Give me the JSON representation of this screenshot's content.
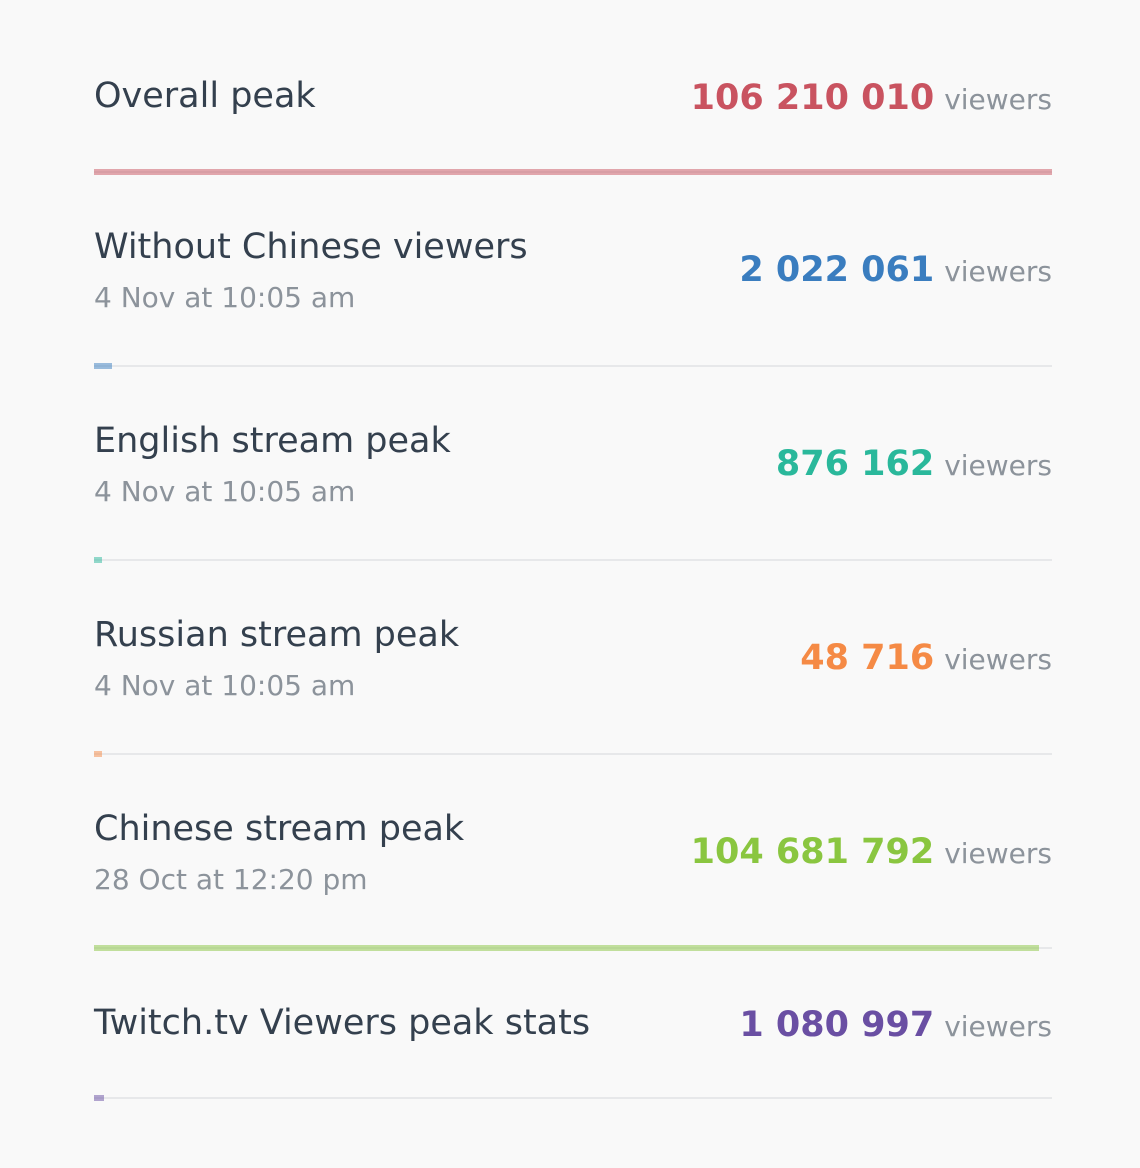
{
  "rows": [
    {
      "title": "Overall peak",
      "date": "",
      "value": "106 210 010",
      "unit": "viewers",
      "color": "#c95360",
      "fill": 1.0
    },
    {
      "title": "Without Chinese viewers",
      "date": "4 Nov at 10:05 am",
      "value": "2 022 061",
      "unit": "viewers",
      "color": "#3a7dbf",
      "fill": 0.019
    },
    {
      "title": "English stream peak",
      "date": "4 Nov at 10:05 am",
      "value": "876 162",
      "unit": "viewers",
      "color": "#2ab89b",
      "fill": 0.008
    },
    {
      "title": "Russian stream peak",
      "date": "4 Nov at 10:05 am",
      "value": "48 716",
      "unit": "viewers",
      "color": "#f58a45",
      "fill": 0.0005
    },
    {
      "title": "Chinese stream peak",
      "date": "28 Oct at 12:20 pm",
      "value": "104 681 792",
      "unit": "viewers",
      "color": "#8ac640",
      "fill": 0.986
    },
    {
      "title": "Twitch.tv Viewers peak stats",
      "date": "",
      "value": "1 080 997",
      "unit": "viewers",
      "color": "#6a4fa3",
      "fill": 0.01
    }
  ]
}
